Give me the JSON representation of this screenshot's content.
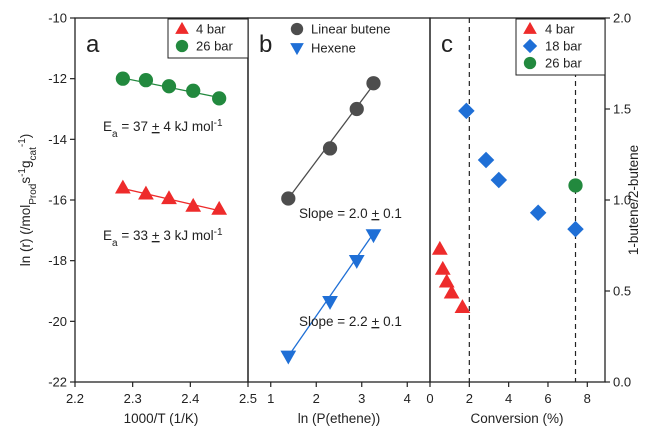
{
  "chart_data": [
    {
      "panel": "a",
      "type": "scatter",
      "xlabel": "1000/T (1/K)",
      "ylabel": "ln (r) (/mol Prod s⁻¹ g cat⁻¹)",
      "xlim": [
        2.2,
        2.5
      ],
      "ylim": [
        -22,
        -10
      ],
      "xticks": [
        "2.2",
        "2.3",
        "2.4",
        "2.5"
      ],
      "yticks": [
        "-22",
        "-20",
        "-18",
        "-16",
        "-14",
        "-12",
        "-10"
      ],
      "legend_position": "top-right",
      "series": [
        {
          "name": "4 bar",
          "color": "#ee2b2b",
          "marker": "triangle-up",
          "x": [
            2.283,
            2.323,
            2.363,
            2.405,
            2.45
          ],
          "y": [
            -15.6,
            -15.8,
            -15.95,
            -16.2,
            -16.3
          ],
          "fit": {
            "x": [
              2.283,
              2.45
            ],
            "y": [
              -15.62,
              -16.35
            ]
          }
        },
        {
          "name": "26 bar",
          "color": "#22893e",
          "marker": "circle",
          "x": [
            2.283,
            2.323,
            2.363,
            2.405,
            2.45
          ],
          "y": [
            -12.0,
            -12.05,
            -12.25,
            -12.4,
            -12.65
          ],
          "fit": {
            "x": [
              2.283,
              2.45
            ],
            "y": [
              -11.98,
              -12.62
            ]
          }
        }
      ],
      "annotations": [
        {
          "text": "E_a = 37 ± 4 kJ mol⁻¹",
          "at": "26 bar"
        },
        {
          "text": "E_a = 33 ± 3 kJ mol⁻¹",
          "at": "4 bar"
        }
      ]
    },
    {
      "panel": "b",
      "type": "scatter",
      "xlabel": "ln (P(ethene))",
      "xlim": [
        0.5,
        4.5
      ],
      "ylim": [
        -22,
        -10
      ],
      "xticks": [
        "1",
        "2",
        "3",
        "4"
      ],
      "legend_position": "top-right",
      "series": [
        {
          "name": "Linear butene",
          "color": "#4d4d4d",
          "marker": "circle",
          "x": [
            1.386,
            2.303,
            2.89,
            3.258
          ],
          "y": [
            -15.95,
            -14.3,
            -13.0,
            -12.15
          ],
          "fit": {
            "x": [
              1.386,
              3.258
            ],
            "y": [
              -15.95,
              -12.2
            ]
          }
        },
        {
          "name": "Hexene",
          "color": "#1f6fd6",
          "marker": "triangle-down",
          "x": [
            1.386,
            2.303,
            2.89,
            3.258
          ],
          "y": [
            -21.15,
            -19.35,
            -18.0,
            -17.15
          ],
          "fit": {
            "x": [
              1.386,
              3.258
            ],
            "y": [
              -21.15,
              -17.1
            ]
          }
        }
      ],
      "annotations": [
        {
          "text": "Slope = 2.0 ± 0.1",
          "at": "Linear butene"
        },
        {
          "text": "Slope = 2.2 ± 0.1",
          "at": "Hexene"
        }
      ]
    },
    {
      "panel": "c",
      "type": "scatter",
      "xlabel": "Conversion (%)",
      "ylabel": "1-butene/2-butene",
      "xlim": [
        0,
        8.9
      ],
      "ylim": [
        0.0,
        2.0
      ],
      "xticks": [
        "0",
        "2",
        "4",
        "6",
        "8"
      ],
      "yticks": [
        "0.0",
        "0.5",
        "1.0",
        "1.5",
        "2.0"
      ],
      "legend_position": "top-right",
      "vlines": [
        2.0,
        7.4
      ],
      "series": [
        {
          "name": "4 bar",
          "color": "#ee2b2b",
          "marker": "triangle-up",
          "x": [
            0.5,
            0.65,
            0.85,
            1.1,
            1.65
          ],
          "y": [
            0.73,
            0.62,
            0.55,
            0.49,
            0.41
          ]
        },
        {
          "name": "18 bar",
          "color": "#1f6fd6",
          "marker": "diamond",
          "x": [
            1.85,
            2.85,
            3.5,
            5.5,
            7.4
          ],
          "y": [
            1.49,
            1.22,
            1.11,
            0.93,
            0.84
          ]
        },
        {
          "name": "26 bar",
          "color": "#22893e",
          "marker": "circle",
          "x": [
            7.4
          ],
          "y": [
            1.08
          ]
        }
      ]
    }
  ]
}
